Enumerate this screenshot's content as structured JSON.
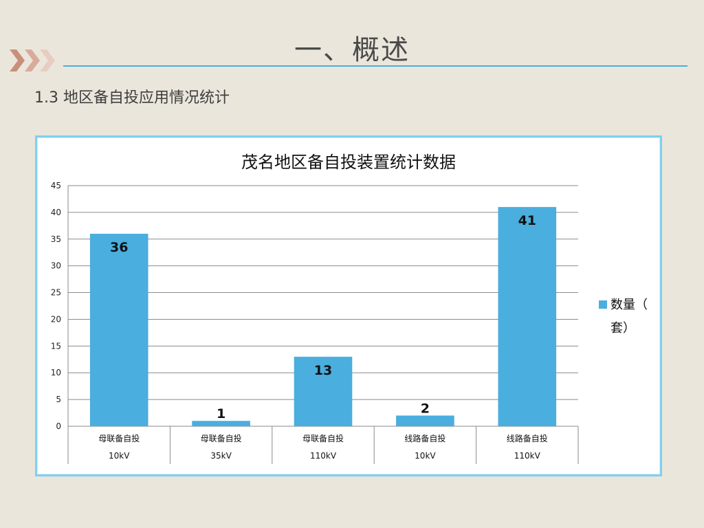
{
  "slide": {
    "title": "一、概述",
    "subtitle": "1.3  地区备自投应用情况统计"
  },
  "colors": {
    "background": "#ebe6dc",
    "bar": "#4aaede",
    "accent_rule": "#4aaede",
    "frame_border": "#7ed0f0",
    "chevron": "#c98f7a"
  },
  "chart_data": {
    "type": "bar",
    "title": "茂名地区备自投装置统计数据",
    "categories": [
      [
        "母联备自投",
        "10kV"
      ],
      [
        "母联备自投",
        "35kV"
      ],
      [
        "母联备自投",
        "110kV"
      ],
      [
        "线路备自投",
        "10kV"
      ],
      [
        "线路备自投",
        "110kV"
      ]
    ],
    "series": [
      {
        "name": "数量（套）",
        "values": [
          36,
          1,
          13,
          2,
          41
        ],
        "color": "#4aaede"
      }
    ],
    "data_labels": true,
    "ylim": [
      0,
      45
    ],
    "yticks": [
      0,
      5,
      10,
      15,
      20,
      25,
      30,
      35,
      40,
      45
    ],
    "grid": true,
    "legend_position": "right",
    "legend_lines": [
      "数量（",
      "套）"
    ]
  }
}
